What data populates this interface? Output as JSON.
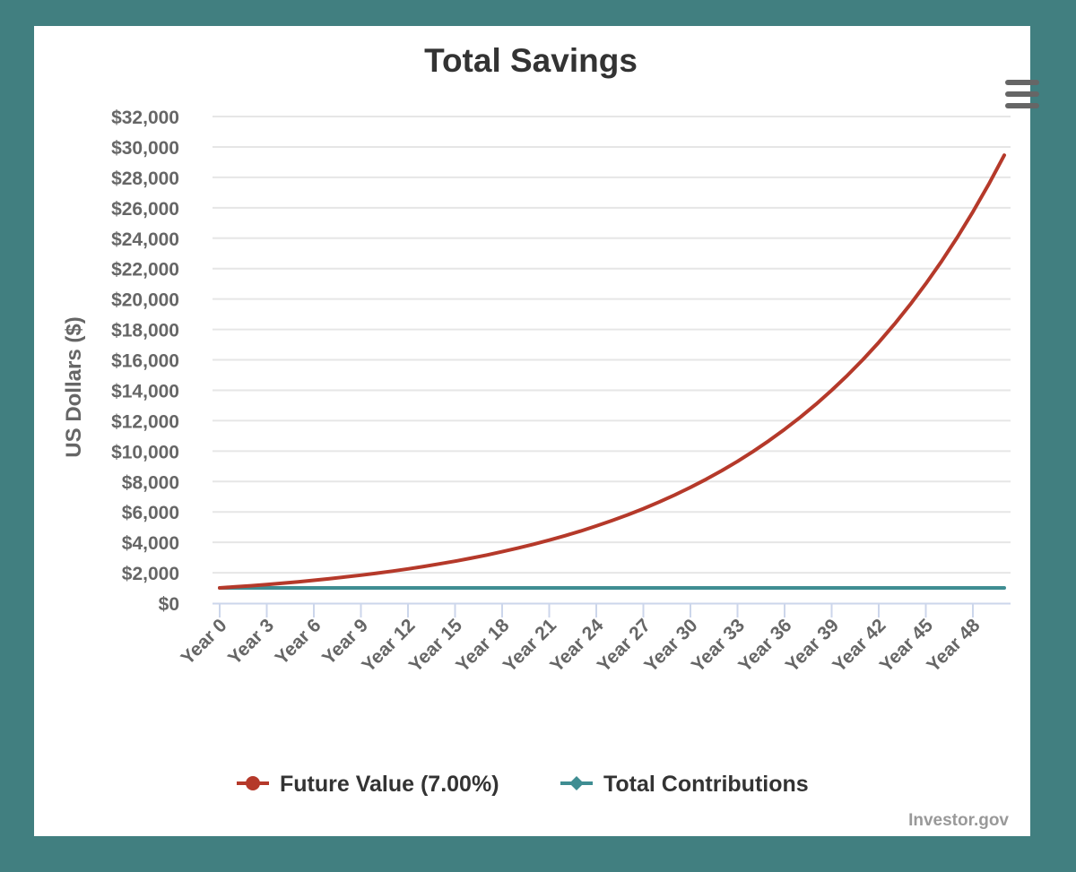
{
  "chart_data": {
    "type": "line",
    "title": "Total Savings",
    "ylabel": "US Dollars ($)",
    "xlabel": "",
    "ylim": [
      0,
      32000
    ],
    "y_ticks": [
      "$0",
      "$2,000",
      "$4,000",
      "$6,000",
      "$8,000",
      "$10,000",
      "$12,000",
      "$14,000",
      "$16,000",
      "$18,000",
      "$20,000",
      "$22,000",
      "$24,000",
      "$26,000",
      "$28,000",
      "$30,000",
      "$32,000"
    ],
    "x_tick_labels": [
      "Year 0",
      "Year 3",
      "Year 6",
      "Year 9",
      "Year 12",
      "Year 15",
      "Year 18",
      "Year 21",
      "Year 24",
      "Year 27",
      "Year 30",
      "Year 33",
      "Year 36",
      "Year 39",
      "Year 42",
      "Year 45",
      "Year 48"
    ],
    "x_range": [
      0,
      50
    ],
    "grid": true,
    "legend_position": "bottom",
    "series": [
      {
        "name": "Future Value (7.00%)",
        "color": "#b5392a",
        "marker": "circle",
        "years": [
          0,
          1,
          2,
          3,
          4,
          5,
          6,
          7,
          8,
          9,
          10,
          11,
          12,
          13,
          14,
          15,
          16,
          17,
          18,
          19,
          20,
          21,
          22,
          23,
          24,
          25,
          26,
          27,
          28,
          29,
          30,
          31,
          32,
          33,
          34,
          35,
          36,
          37,
          38,
          39,
          40,
          41,
          42,
          43,
          44,
          45,
          46,
          47,
          48,
          49,
          50
        ],
        "values": [
          1000,
          1070,
          1145,
          1225,
          1311,
          1403,
          1501,
          1606,
          1718,
          1838,
          1967,
          2105,
          2252,
          2410,
          2579,
          2759,
          2952,
          3159,
          3380,
          3617,
          3870,
          4141,
          4430,
          4741,
          5072,
          5427,
          5807,
          6214,
          6649,
          7114,
          7612,
          8145,
          8715,
          9325,
          9978,
          10677,
          11424,
          12224,
          13079,
          13995,
          14974,
          16023,
          17144,
          18344,
          19628,
          21002,
          22473,
          24046,
          25729,
          27530,
          29457
        ]
      },
      {
        "name": "Total Contributions",
        "color": "#3f8d92",
        "marker": "diamond",
        "years": [
          0,
          50
        ],
        "values": [
          1000,
          1000
        ]
      }
    ],
    "credits": "Investor.gov"
  },
  "icons": {
    "menu": "hamburger-menu-icon"
  }
}
